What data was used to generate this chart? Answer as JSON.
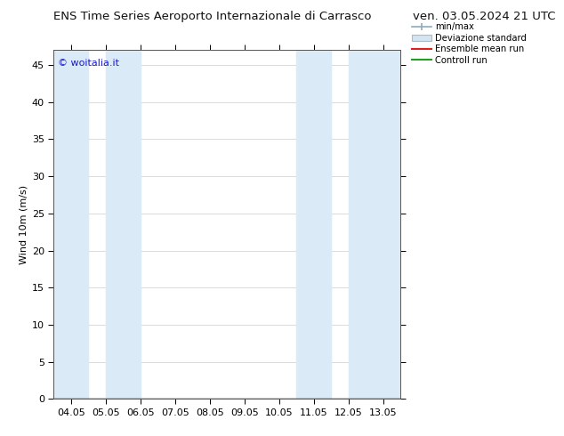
{
  "title_left": "ENS Time Series Aeroporto Internazionale di Carrasco",
  "title_right": "ven. 03.05.2024 21 UTC",
  "ylabel": "Wind 10m (m/s)",
  "watermark": "© woitalia.it",
  "ylim": [
    0,
    47
  ],
  "yticks": [
    0,
    5,
    10,
    15,
    20,
    25,
    30,
    35,
    40,
    45
  ],
  "xtick_labels": [
    "04.05",
    "05.05",
    "06.05",
    "07.05",
    "08.05",
    "09.05",
    "10.05",
    "11.05",
    "12.05",
    "13.05"
  ],
  "xlim": [
    -0.5,
    9.5
  ],
  "shaded_bands": [
    [
      -0.5,
      0.5
    ],
    [
      1.0,
      2.0
    ],
    [
      6.5,
      7.5
    ],
    [
      8.0,
      9.5
    ]
  ],
  "shade_color": "#daeaf7",
  "background_color": "#ffffff",
  "legend_items": [
    "min/max",
    "Deviazione standard",
    "Ensemble mean run",
    "Controll run"
  ],
  "legend_line_colors": [
    "#8cacbe",
    "#b8ccd8",
    "#dd2020",
    "#20a020"
  ],
  "title_fontsize": 9.5,
  "ylabel_fontsize": 8,
  "tick_fontsize": 8,
  "watermark_color": "#1a1acc",
  "watermark_fontsize": 8
}
